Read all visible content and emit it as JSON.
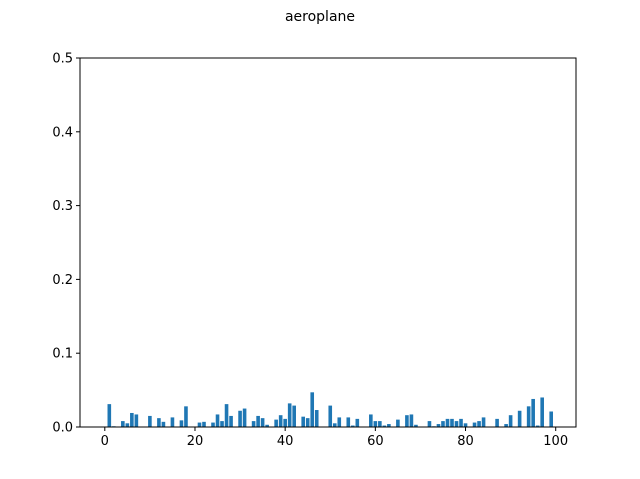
{
  "chart_data": {
    "type": "bar",
    "title": "aeroplane",
    "xlabel": "",
    "ylabel": "",
    "xlim": [
      -5.5,
      104.5
    ],
    "ylim": [
      0,
      0.5
    ],
    "x_ticks": [
      0,
      20,
      40,
      60,
      80,
      100
    ],
    "y_ticks": [
      0.0,
      0.1,
      0.2,
      0.3,
      0.4,
      0.5
    ],
    "x_tick_labels": [
      "0",
      "20",
      "40",
      "60",
      "80",
      "100"
    ],
    "y_tick_labels": [
      "0.0",
      "0.1",
      "0.2",
      "0.3",
      "0.4",
      "0.5"
    ],
    "bar_width": 0.8,
    "bar_color": "#1f77b4",
    "grid": false,
    "x": [
      0,
      1,
      2,
      3,
      4,
      5,
      6,
      7,
      8,
      9,
      10,
      11,
      12,
      13,
      14,
      15,
      16,
      17,
      18,
      19,
      20,
      21,
      22,
      23,
      24,
      25,
      26,
      27,
      28,
      29,
      30,
      31,
      32,
      33,
      34,
      35,
      36,
      37,
      38,
      39,
      40,
      41,
      42,
      43,
      44,
      45,
      46,
      47,
      48,
      49,
      50,
      51,
      52,
      53,
      54,
      55,
      56,
      57,
      58,
      59,
      60,
      61,
      62,
      63,
      64,
      65,
      66,
      67,
      68,
      69,
      70,
      71,
      72,
      73,
      74,
      75,
      76,
      77,
      78,
      79,
      80,
      81,
      82,
      83,
      84,
      85,
      86,
      87,
      88,
      89,
      90,
      91,
      92,
      93,
      94,
      95,
      96,
      97,
      98,
      99
    ],
    "values": [
      0,
      0.031,
      0.001,
      0,
      0.008,
      0.005,
      0.019,
      0.017,
      0,
      0,
      0.015,
      0,
      0.012,
      0.007,
      0,
      0.013,
      0,
      0.009,
      0.028,
      0,
      0,
      0.006,
      0.007,
      0,
      0.006,
      0.017,
      0.008,
      0.031,
      0.015,
      0,
      0.022,
      0.025,
      0,
      0.008,
      0.015,
      0.012,
      0.003,
      0,
      0.01,
      0.016,
      0.011,
      0.032,
      0.029,
      0,
      0.014,
      0.012,
      0.047,
      0.023,
      0,
      0,
      0.029,
      0.005,
      0.013,
      0,
      0.013,
      0.002,
      0.011,
      0,
      0,
      0.017,
      0.008,
      0.008,
      0.002,
      0.004,
      0,
      0.01,
      0,
      0.016,
      0.017,
      0.003,
      0,
      0,
      0.008,
      0.001,
      0.004,
      0.008,
      0.011,
      0.011,
      0.008,
      0.011,
      0.005,
      0,
      0.006,
      0.008,
      0.013,
      0,
      0,
      0.011,
      0,
      0.004,
      0.016,
      0,
      0.022,
      0,
      0.028,
      0.038,
      0.002,
      0.04,
      0,
      0.021
    ]
  }
}
